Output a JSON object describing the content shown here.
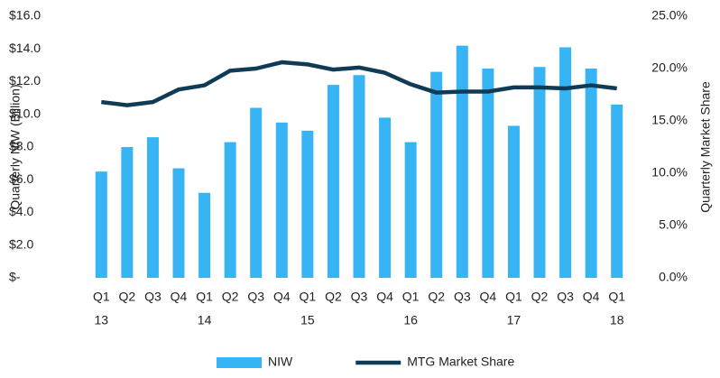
{
  "chart_data": {
    "type": "bar-line",
    "categories": [
      [
        "Q1",
        "13"
      ],
      [
        "Q2"
      ],
      [
        "Q3"
      ],
      [
        "Q4"
      ],
      [
        "Q1",
        "14"
      ],
      [
        "Q2"
      ],
      [
        "Q3"
      ],
      [
        "Q4"
      ],
      [
        "Q1",
        "15"
      ],
      [
        "Q2"
      ],
      [
        "Q3"
      ],
      [
        "Q4"
      ],
      [
        "Q1",
        "16"
      ],
      [
        "Q2"
      ],
      [
        "Q3"
      ],
      [
        "Q4"
      ],
      [
        "Q1",
        "17"
      ],
      [
        "Q2"
      ],
      [
        "Q3"
      ],
      [
        "Q4"
      ],
      [
        "Q1",
        "18"
      ]
    ],
    "y_label": "Quarterly NIW (Billion)",
    "y2_label": "Quarterly Market Share",
    "series": [
      {
        "name": "NIW",
        "type": "bar",
        "color": "#36b4f3",
        "values": [
          6.5,
          8.0,
          8.6,
          6.7,
          5.2,
          8.3,
          10.4,
          9.5,
          9.0,
          11.8,
          12.4,
          9.8,
          8.3,
          12.6,
          14.2,
          12.8,
          9.3,
          12.9,
          14.1,
          12.8,
          10.6
        ]
      },
      {
        "name": "MTG Market Share",
        "type": "line",
        "axis": "y2",
        "color": "#0f3b57",
        "values": [
          16.8,
          16.5,
          16.8,
          18.0,
          18.4,
          19.8,
          20.0,
          20.6,
          20.4,
          19.9,
          20.1,
          19.6,
          18.5,
          17.7,
          17.8,
          17.8,
          18.2,
          18.2,
          18.1,
          18.4,
          18.1
        ]
      }
    ],
    "ylim": [
      0,
      16
    ],
    "yticks": [
      {
        "value": 0,
        "label": "$-"
      },
      {
        "value": 2,
        "label": "$2.0"
      },
      {
        "value": 4,
        "label": "$4.0"
      },
      {
        "value": 6,
        "label": "$6.0"
      },
      {
        "value": 8,
        "label": "$8.0"
      },
      {
        "value": 10,
        "label": "$10.0"
      },
      {
        "value": 12,
        "label": "$12.0"
      },
      {
        "value": 14,
        "label": "$14.0"
      },
      {
        "value": 16,
        "label": "$16.0"
      }
    ],
    "y2lim": [
      0,
      25
    ],
    "y2ticks": [
      {
        "value": 0,
        "label": "0.0%"
      },
      {
        "value": 5,
        "label": "5.0%"
      },
      {
        "value": 10,
        "label": "10.0%"
      },
      {
        "value": 15,
        "label": "15.0%"
      },
      {
        "value": 20,
        "label": "20.0%"
      },
      {
        "value": 25,
        "label": "25.0%"
      }
    ],
    "legend": "bottom"
  }
}
